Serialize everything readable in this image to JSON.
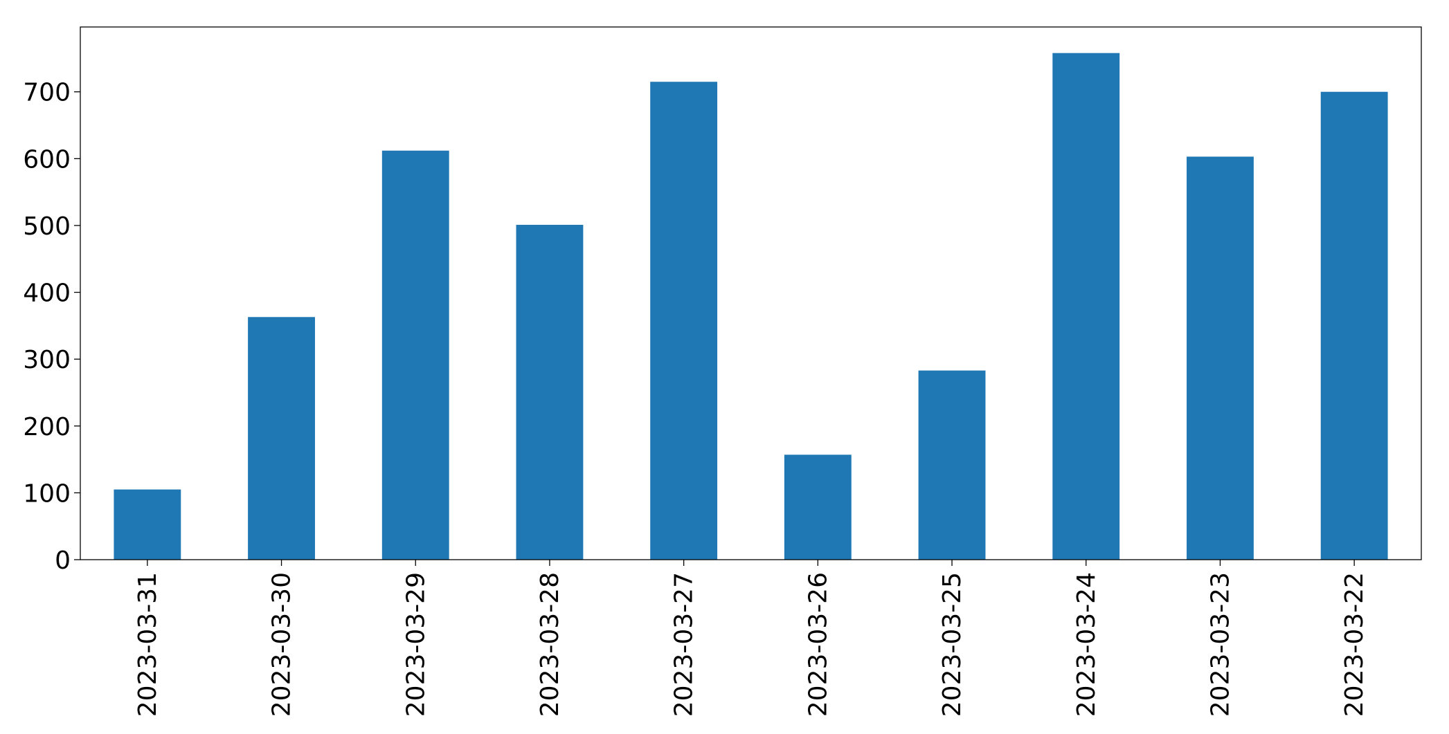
{
  "chart_data": {
    "type": "bar",
    "categories": [
      "2023-03-31",
      "2023-03-30",
      "2023-03-29",
      "2023-03-28",
      "2023-03-27",
      "2023-03-26",
      "2023-03-25",
      "2023-03-24",
      "2023-03-23",
      "2023-03-22"
    ],
    "values": [
      105,
      363,
      612,
      501,
      715,
      157,
      283,
      758,
      603,
      700
    ],
    "color": "#1f77b4",
    "ylim": [
      0,
      797
    ],
    "yticks": [
      0,
      100,
      200,
      300,
      400,
      500,
      600,
      700
    ],
    "grid": false
  }
}
